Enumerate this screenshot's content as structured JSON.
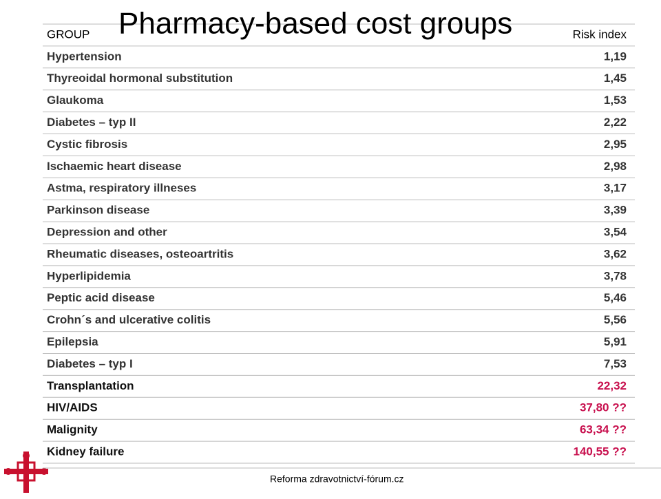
{
  "title": "Pharmacy-based cost groups",
  "footer": "Reforma zdravotnictví-fórum.cz",
  "table": {
    "header": [
      "GROUP",
      "Risk index"
    ],
    "rows": [
      {
        "group": "Hypertension",
        "risk_index": "1,19",
        "color": "#333333"
      },
      {
        "group": "Thyreoidal hormonal substitution",
        "risk_index": "1,45",
        "color": "#333333"
      },
      {
        "group": "Glaukoma",
        "risk_index": "1,53",
        "color": "#333333"
      },
      {
        "group": "Diabetes – typ II",
        "risk_index": "2,22",
        "color": "#333333"
      },
      {
        "group": "Cystic fibrosis",
        "risk_index": "2,95",
        "color": "#333333"
      },
      {
        "group": "Ischaemic heart disease",
        "risk_index": "2,98",
        "color": "#333333"
      },
      {
        "group": "Astma, respiratory illneses",
        "risk_index": "3,17",
        "color": "#333333"
      },
      {
        "group": "Parkinson disease",
        "risk_index": "3,39",
        "color": "#333333"
      },
      {
        "group": "Depression and other",
        "risk_index": "3,54",
        "color": "#333333"
      },
      {
        "group": "Rheumatic diseases, osteoartritis",
        "risk_index": "3,62",
        "color": "#333333"
      },
      {
        "group": "Hyperlipidemia",
        "risk_index": "3,78",
        "color": "#333333"
      },
      {
        "group": "Peptic acid disease",
        "risk_index": "5,46",
        "color": "#333333"
      },
      {
        "group": "Crohn´s and ulcerative colitis",
        "risk_index": "5,56",
        "color": "#333333"
      },
      {
        "group": "Epilepsia",
        "risk_index": "5,91",
        "color": "#333333"
      },
      {
        "group": "Diabetes – typ I",
        "risk_index": "7,53",
        "color": "#333333"
      },
      {
        "group": "Transplantation",
        "risk_index": "22,32",
        "color": "#c8104e"
      },
      {
        "group": "HIV/AIDS",
        "risk_index": "37,80 ??",
        "color": "#c8104e"
      },
      {
        "group": "Malignity",
        "risk_index": "63,34 ??",
        "color": "#c8104e"
      },
      {
        "group": "Kidney failure",
        "risk_index": "140,55 ??",
        "color": "#c8104e"
      }
    ]
  }
}
